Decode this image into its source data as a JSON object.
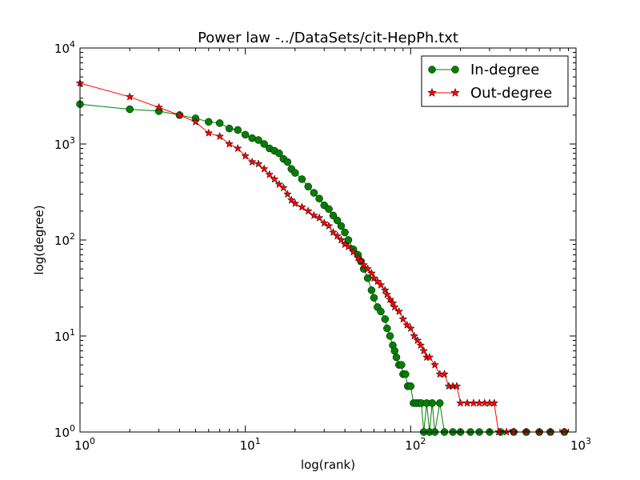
{
  "chart_data": {
    "type": "line",
    "title": "Power law -../DataSets/cit-HepPh.txt",
    "xlabel": "log(rank)",
    "ylabel": "log(degree)",
    "xscale": "log",
    "yscale": "log",
    "xlim": [
      1,
      1000
    ],
    "ylim": [
      1,
      10000
    ],
    "x_ticks": [
      {
        "value": 1,
        "base": "10",
        "exp": "0"
      },
      {
        "value": 10,
        "base": "10",
        "exp": "1"
      },
      {
        "value": 100,
        "base": "10",
        "exp": "2"
      },
      {
        "value": 1000,
        "base": "10",
        "exp": "3"
      }
    ],
    "y_ticks": [
      {
        "value": 1,
        "base": "10",
        "exp": "0"
      },
      {
        "value": 10,
        "base": "10",
        "exp": "1"
      },
      {
        "value": 100,
        "base": "10",
        "exp": "2"
      },
      {
        "value": 1000,
        "base": "10",
        "exp": "3"
      },
      {
        "value": 10000,
        "base": "10",
        "exp": "4"
      }
    ],
    "grid": false,
    "legend_position": "top-right",
    "series": [
      {
        "name": "In-degree",
        "color": "#008000",
        "marker": "circle",
        "x": [
          1,
          2,
          3,
          4,
          5,
          6,
          7,
          8,
          9,
          10,
          11,
          12,
          13,
          14,
          15,
          16,
          17,
          18,
          19,
          20,
          22,
          24,
          26,
          28,
          30,
          32,
          34,
          36,
          38,
          40,
          42,
          45,
          48,
          50,
          52,
          55,
          58,
          60,
          63,
          66,
          70,
          72,
          75,
          78,
          80,
          82,
          85,
          88,
          90,
          93,
          96,
          100,
          104,
          108,
          112,
          116,
          120,
          125,
          130,
          135,
          140,
          150,
          160,
          180,
          200,
          230,
          260,
          300,
          350,
          420,
          500,
          600,
          700,
          850
        ],
        "y": [
          2600,
          2300,
          2200,
          2000,
          1850,
          1700,
          1650,
          1450,
          1400,
          1250,
          1150,
          1100,
          1000,
          900,
          850,
          800,
          700,
          650,
          550,
          500,
          430,
          360,
          310,
          270,
          230,
          210,
          180,
          160,
          140,
          120,
          100,
          80,
          70,
          60,
          50,
          40,
          30,
          25,
          20,
          18,
          15,
          12,
          10,
          8,
          7,
          6,
          5,
          5,
          4,
          4,
          3,
          3,
          2,
          2,
          2,
          2,
          1,
          2,
          1,
          2,
          1,
          2,
          1,
          1,
          1,
          1,
          1,
          1,
          1,
          1,
          1,
          1,
          1,
          1
        ]
      },
      {
        "name": "Out-degree",
        "color": "#ff0000",
        "marker": "star",
        "x": [
          1,
          2,
          3,
          4,
          5,
          6,
          7,
          8,
          9,
          10,
          11,
          12,
          13,
          14,
          15,
          16,
          17,
          18,
          19,
          20,
          22,
          24,
          26,
          28,
          30,
          32,
          34,
          36,
          38,
          40,
          42,
          45,
          48,
          50,
          52,
          55,
          58,
          60,
          63,
          66,
          70,
          72,
          75,
          78,
          80,
          85,
          90,
          95,
          100,
          105,
          110,
          115,
          120,
          125,
          130,
          140,
          150,
          160,
          170,
          180,
          190,
          200,
          220,
          240,
          260,
          280,
          300,
          320,
          340,
          380,
          420,
          500,
          600,
          700,
          850
        ],
        "y": [
          4300,
          3100,
          2400,
          2000,
          1700,
          1300,
          1200,
          1000,
          900,
          750,
          650,
          620,
          550,
          480,
          430,
          380,
          350,
          300,
          260,
          240,
          220,
          200,
          180,
          170,
          150,
          140,
          120,
          110,
          100,
          90,
          85,
          75,
          65,
          60,
          55,
          50,
          45,
          40,
          37,
          34,
          30,
          27,
          24,
          22,
          20,
          18,
          15,
          13,
          12,
          10,
          9,
          8,
          7,
          6,
          6,
          5,
          4,
          4,
          3,
          3,
          3,
          2,
          2,
          2,
          2,
          2,
          2,
          2,
          1,
          1,
          1,
          1,
          1,
          1,
          1
        ]
      }
    ]
  }
}
